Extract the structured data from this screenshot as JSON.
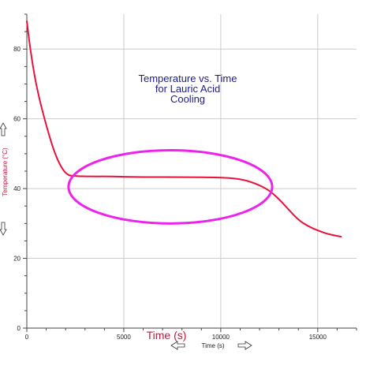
{
  "chart_data": {
    "type": "line",
    "title_lines": [
      "Temperature vs. Time",
      "for Lauric Acid",
      "Cooling"
    ],
    "xlabel": "Time (s)",
    "xlabel_annotation": "Time (s)",
    "ylabel": "Temperature (°C)",
    "xlim": [
      0,
      17000
    ],
    "ylim": [
      0,
      90
    ],
    "x_ticks": [
      0,
      5000,
      10000,
      15000
    ],
    "y_ticks": [
      0,
      20,
      40,
      60,
      80
    ],
    "grid": true,
    "series": [
      {
        "color": "#e8123c",
        "x": [
          0,
          200,
          500,
          1000,
          1500,
          2000,
          2500,
          4000,
          6000,
          8000,
          10000,
          11000,
          11800,
          12500,
          13000,
          13500,
          14000,
          14500,
          15000,
          15500,
          16200
        ],
        "y": [
          88,
          79,
          69,
          58,
          49,
          44,
          43.5,
          43.5,
          43.3,
          43.3,
          43.2,
          42.8,
          41.5,
          39.5,
          37,
          34,
          31,
          29.2,
          28,
          27,
          26.2
        ]
      }
    ],
    "annotation_ellipse": {
      "color": "#ee22ee",
      "cx": 7400,
      "cy": 40.5,
      "rx": 5250,
      "ry": 10.5
    }
  }
}
